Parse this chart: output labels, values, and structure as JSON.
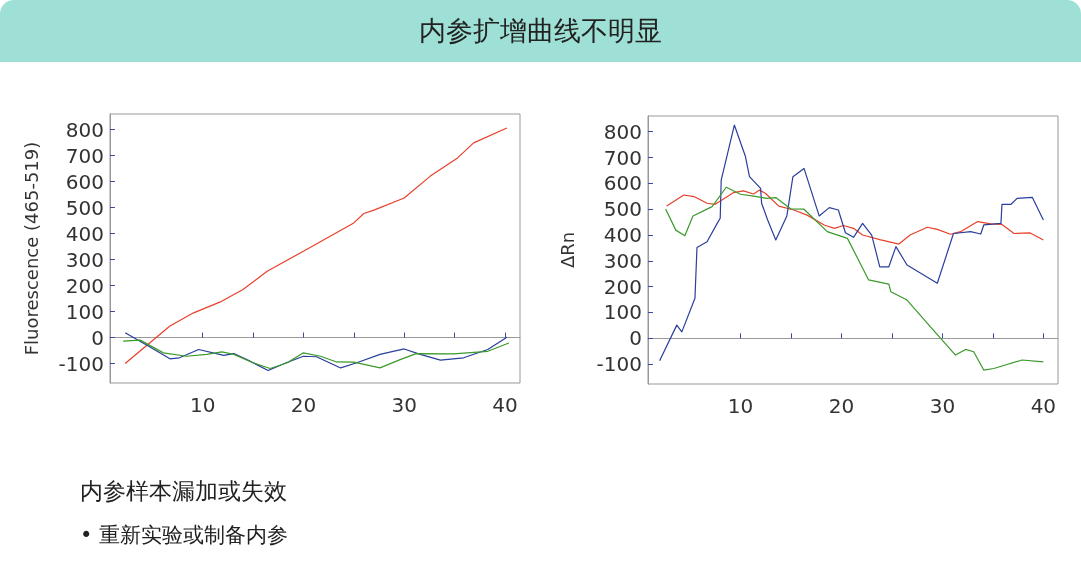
{
  "chart_data": [
    {
      "type": "line",
      "title": "内参扩增曲线不明显",
      "ylabel": "Fluorescence (465-519)",
      "annotations": [
        "内参样本漏加或失效",
        "• 重新实验或制备内参"
      ],
      "xlim": [
        0.8,
        41.5
      ],
      "ylim": [
        -175,
        860
      ],
      "xticks": [
        10,
        {
          "value": 15,
          "label": null
        },
        20,
        {
          "value": 25,
          "label": null
        },
        30,
        {
          "value": 35,
          "label": null
        },
        40
      ],
      "yticks": [
        -100,
        0,
        100,
        200,
        300,
        400,
        500,
        600,
        700,
        800
      ],
      "series": [
        {
          "color": "#e8402a",
          "x": [
            2.3,
            6.75,
            9.1,
            11.7,
            14.0,
            16.4,
            20.0,
            25.0,
            26.0,
            27.0,
            30.0,
            32.6,
            35.3,
            36.9,
            40.2
          ],
          "values": [
            -100,
            44,
            95,
            136,
            185,
            255,
            332,
            441,
            477,
            490,
            537,
            621,
            691,
            749,
            806
          ]
        },
        {
          "color": "#2a3e9c",
          "x": [
            2.3,
            4.6,
            6.75,
            7.7,
            9.6,
            12.1,
            13.1,
            14.7,
            16.5,
            18.3,
            20.0,
            21.3,
            23.7,
            25.3,
            27.6,
            30.0,
            31.6,
            33.6,
            35.9,
            38.3,
            40.2
          ],
          "values": [
            18,
            -33,
            -82,
            -78,
            -46,
            -69,
            -62,
            -91,
            -127,
            -97,
            -72,
            -74,
            -117,
            -97,
            -65,
            -44,
            -65,
            -87,
            -78,
            -46,
            1
          ]
        },
        {
          "color": "#3a9a2a",
          "x": [
            2.1,
            3.8,
            6.1,
            8.4,
            10.4,
            11.9,
            13.1,
            15.0,
            16.7,
            18.4,
            20.0,
            21.7,
            23.3,
            25.0,
            27.6,
            29.6,
            31.2,
            34.9,
            38.3,
            40.4
          ],
          "values": [
            -14,
            -10,
            -59,
            -72,
            -65,
            -55,
            -65,
            -97,
            -119,
            -97,
            -59,
            -72,
            -94,
            -95,
            -117,
            -85,
            -62,
            -63,
            -53,
            -21
          ]
        }
      ]
    },
    {
      "type": "line",
      "ylabel": "ΔRn",
      "xlim": [
        0.85,
        41.45
      ],
      "ylim": [
        -177,
        861
      ],
      "xticks": [
        10,
        {
          "value": 15,
          "label": null
        },
        20,
        {
          "value": 25,
          "label": null
        },
        30,
        {
          "value": 35,
          "label": null
        },
        40
      ],
      "yticks": [
        -100,
        0,
        100,
        200,
        300,
        400,
        500,
        600,
        700,
        800
      ],
      "series": [
        {
          "color": "#e8402a",
          "x": [
            2.7,
            4.4,
            5.4,
            6.7,
            7.5,
            9.3,
            10.3,
            11.3,
            11.9,
            12.5,
            13.8,
            15.3,
            16.6,
            18.3,
            19.3,
            20.2,
            21.2,
            22.1,
            23.9,
            25.7,
            26.8,
            28.5,
            29.5,
            30.8,
            31.8,
            33.5,
            34.8,
            35.9,
            37.1,
            38.7,
            40.0
          ],
          "values": [
            512,
            555,
            549,
            523,
            519,
            564,
            571,
            559,
            574,
            561,
            512,
            497,
            477,
            439,
            426,
            437,
            426,
            400,
            381,
            365,
            400,
            430,
            422,
            403,
            413,
            452,
            443,
            441,
            406,
            408,
            381
          ]
        },
        {
          "color": "#2a3e9c",
          "x": [
            2.0,
            3.7,
            4.2,
            5.5,
            5.7,
            6.7,
            7.7,
            8.0,
            8.1,
            9.4,
            10.5,
            10.9,
            12.0,
            12.1,
            12.7,
            13.5,
            14.6,
            15.2,
            16.3,
            17.8,
            18.8,
            19.7,
            20.4,
            21.2,
            22.1,
            23.0,
            23.8,
            24.7,
            25.4,
            26.5,
            29.5,
            31.1,
            32.8,
            33.8,
            34.1,
            35.8,
            35.9,
            36.8,
            37.4,
            38.9,
            40.0
          ],
          "values": [
            -87,
            51,
            25,
            155,
            352,
            374,
            445,
            465,
            613,
            826,
            704,
            626,
            581,
            523,
            458,
            381,
            474,
            626,
            658,
            474,
            506,
            497,
            409,
            391,
            445,
            400,
            277,
            277,
            355,
            284,
            213,
            406,
            413,
            404,
            439,
            445,
            519,
            519,
            542,
            546,
            458
          ]
        },
        {
          "color": "#3a9a2a",
          "x": [
            2.6,
            3.6,
            4.5,
            5.3,
            7.2,
            8.6,
            10.0,
            11.3,
            12.6,
            13.5,
            15.0,
            16.3,
            18.6,
            20.6,
            22.7,
            24.7,
            24.9,
            26.5,
            28.8,
            31.3,
            32.3,
            33.1,
            34.1,
            35.1,
            37.9,
            40.0
          ],
          "values": [
            501,
            419,
            397,
            474,
            510,
            585,
            558,
            551,
            542,
            545,
            501,
            500,
            413,
            387,
            226,
            210,
            180,
            148,
            45,
            -65,
            -43,
            -52,
            -123,
            -117,
            -84,
            -91
          ]
        }
      ]
    }
  ]
}
